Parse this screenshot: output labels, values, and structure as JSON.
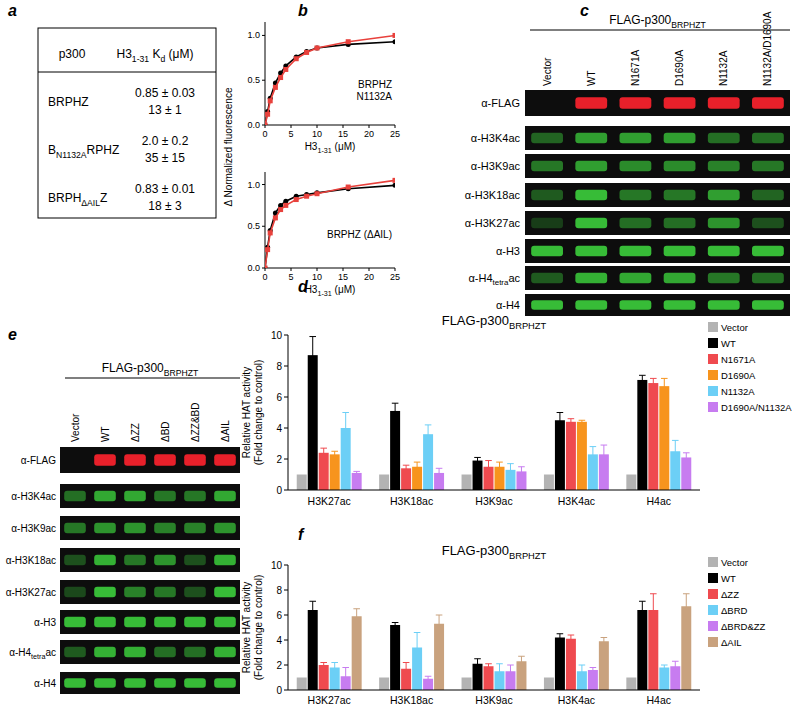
{
  "panel_labels": [
    "a",
    "b",
    "c",
    "d",
    "e",
    "f"
  ],
  "table": {
    "header": [
      [
        {
          "text": "p300"
        }
      ],
      [
        {
          "text": "H3"
        },
        {
          "text": "1-31",
          "sub": true
        },
        {
          "text": " K"
        },
        {
          "text": "d",
          "sub": true
        },
        {
          "text": " (μM)"
        }
      ]
    ],
    "rows": [
      {
        "name": [
          {
            "text": "BRPHZ"
          }
        ],
        "kd": [
          "0.85 ± 0.03",
          "13 ± 1"
        ]
      },
      {
        "name": [
          {
            "text": "B"
          },
          {
            "text": "N1132A",
            "sub": true
          },
          {
            "text": "RPHZ"
          }
        ],
        "kd": [
          "2.0 ± 0.2",
          "35 ± 15"
        ]
      },
      {
        "name": [
          {
            "text": "BRPH"
          },
          {
            "text": "ΔAIL",
            "sub": true
          },
          {
            "text": "Z"
          }
        ],
        "kd": [
          "0.83 ± 0.01",
          "18 ± 3"
        ]
      }
    ]
  },
  "chart_data": [
    {
      "type": "line",
      "ylabel": [
        {
          "text": "Δ Normalized fluorescence"
        }
      ],
      "xlabel": [
        {
          "text": "H3"
        },
        {
          "text": "1-31",
          "sub": true
        },
        {
          "text": " (μM)"
        }
      ],
      "annotation": [
        "BRPHZ",
        "N1132A"
      ],
      "x": [
        0,
        0.5,
        1,
        2,
        3,
        4,
        6,
        8,
        10,
        16,
        25
      ],
      "series": [
        {
          "color": "#000000",
          "marker": "circle",
          "values": [
            0,
            0.15,
            0.3,
            0.47,
            0.58,
            0.66,
            0.76,
            0.82,
            0.86,
            0.9,
            0.93
          ]
        },
        {
          "color": "#e8413c",
          "marker": "square",
          "values": [
            0,
            0.12,
            0.27,
            0.42,
            0.53,
            0.62,
            0.74,
            0.81,
            0.86,
            0.93,
            1.0
          ]
        }
      ],
      "xlim": [
        0,
        25
      ],
      "xticks": [
        0,
        5,
        10,
        15,
        20,
        25
      ],
      "ylim": [
        0,
        1.15
      ],
      "yticks": [
        {
          "value": 0,
          "label": "0.0"
        },
        {
          "value": 0.5,
          "label": "0.5"
        },
        {
          "value": 1,
          "label": "1.0"
        }
      ]
    },
    {
      "type": "line",
      "xlabel": [
        {
          "text": "H3"
        },
        {
          "text": "1-31",
          "sub": true
        },
        {
          "text": " (μM)"
        }
      ],
      "annotation": [
        "BRPHZ (ΔAIL)"
      ],
      "x": [
        0,
        0.5,
        1,
        2,
        3,
        4,
        6,
        8,
        10,
        16,
        25
      ],
      "series": [
        {
          "color": "#000000",
          "marker": "circle",
          "values": [
            0,
            0.25,
            0.45,
            0.66,
            0.75,
            0.8,
            0.86,
            0.88,
            0.9,
            0.95,
            0.99
          ]
        },
        {
          "color": "#e8413c",
          "marker": "square",
          "values": [
            0,
            0.22,
            0.42,
            0.6,
            0.7,
            0.75,
            0.82,
            0.86,
            0.89,
            0.97,
            1.05
          ]
        }
      ],
      "xlim": [
        0,
        25
      ],
      "xticks": [
        0,
        5,
        10,
        15,
        20,
        25
      ],
      "ylim": [
        0,
        1.15
      ],
      "yticks": [
        {
          "value": 0,
          "label": "0.0"
        },
        {
          "value": 0.5,
          "label": "0.5"
        },
        {
          "value": 1,
          "label": "1.0"
        }
      ]
    },
    {
      "type": "bar",
      "title": [
        {
          "text": "FLAG-p300"
        },
        {
          "text": "BRPHZT",
          "sub": true
        }
      ],
      "ylabel": [
        "Relative HAT activity",
        "(Fold change to control)"
      ],
      "legend": "right",
      "categories": [
        "H3K27ac",
        "H3K18ac",
        "H3K9ac",
        "H3K4ac",
        "H4ac"
      ],
      "series": [
        {
          "name": "Vector",
          "color": "#b3b3b3",
          "values": [
            1,
            1,
            1,
            1,
            1
          ],
          "errors": [
            null,
            null,
            null,
            null,
            null
          ]
        },
        {
          "name": "WT",
          "color": "#000000",
          "values": [
            8.7,
            5.1,
            1.9,
            4.5,
            7.1
          ],
          "errors": [
            1.2,
            0.5,
            0.2,
            0.5,
            0.3
          ]
        },
        {
          "name": "N1671A",
          "color": "#ef4a4f",
          "values": [
            2.4,
            1.4,
            1.5,
            4.4,
            6.9
          ],
          "errors": [
            0.3,
            0.2,
            0.4,
            0.2,
            0.3
          ]
        },
        {
          "name": "D1690A",
          "color": "#f7941d",
          "values": [
            2.3,
            1.5,
            1.5,
            4.4,
            6.7
          ],
          "errors": [
            0.2,
            0.3,
            0.3,
            0.1,
            0.5
          ]
        },
        {
          "name": "N1132A",
          "color": "#6ccff6",
          "values": [
            4.0,
            3.6,
            1.3,
            2.3,
            2.5
          ],
          "errors": [
            1.0,
            0.6,
            0.4,
            0.5,
            0.7
          ]
        },
        {
          "name": "D1690A/N1132A",
          "color": "#c77cf0",
          "values": [
            1.1,
            1.1,
            1.2,
            2.3,
            2.1
          ],
          "errors": [
            0.1,
            0.3,
            0.3,
            0.6,
            0.3
          ]
        }
      ],
      "ylim": [
        0,
        10
      ],
      "yticks": [
        0,
        2,
        4,
        6,
        8,
        10
      ]
    },
    {
      "type": "bar",
      "title": [
        {
          "text": "FLAG-p300"
        },
        {
          "text": "BRPHZT",
          "sub": true
        }
      ],
      "ylabel": [
        "Relative HAT activity",
        "(Fold change to control)"
      ],
      "legend": "right",
      "categories": [
        "H3K27ac",
        "H3K18ac",
        "H3K9ac",
        "H3K4ac",
        "H4ac"
      ],
      "series": [
        {
          "name": "Vector",
          "color": "#b3b3b3",
          "values": [
            1,
            1,
            1,
            1,
            1
          ],
          "errors": [
            null,
            null,
            null,
            null,
            null
          ]
        },
        {
          "name": "WT",
          "color": "#000000",
          "values": [
            6.4,
            5.2,
            2.1,
            4.2,
            6.4
          ],
          "errors": [
            0.7,
            0.2,
            0.4,
            0.3,
            0.7
          ]
        },
        {
          "name": "ΔZZ",
          "color": "#ef4a4f",
          "values": [
            2.0,
            1.7,
            1.9,
            4.1,
            6.4
          ],
          "errors": [
            0.2,
            0.5,
            0.2,
            0.3,
            1.3
          ]
        },
        {
          "name": "ΔBRD",
          "color": "#6ccff6",
          "values": [
            1.8,
            3.4,
            1.5,
            1.5,
            1.8
          ],
          "errors": [
            0.4,
            1.2,
            0.6,
            0.5,
            0.2
          ]
        },
        {
          "name": "ΔBRD&ZZ",
          "color": "#c77cf0",
          "values": [
            1.1,
            0.9,
            1.5,
            1.6,
            1.9
          ],
          "errors": [
            0.7,
            0.2,
            0.5,
            0.2,
            0.4
          ]
        },
        {
          "name": "ΔAIL",
          "color": "#c9a27e",
          "values": [
            5.9,
            5.3,
            2.3,
            3.9,
            6.7
          ],
          "errors": [
            0.6,
            0.7,
            0.4,
            0.3,
            1.0
          ]
        }
      ],
      "ylim": [
        0,
        10
      ],
      "yticks": [
        0,
        2,
        4,
        6,
        8,
        10
      ]
    }
  ],
  "blots": [
    {
      "header": [
        {
          "text": "FLAG-p300"
        },
        {
          "text": "BRPHZT",
          "sub": true
        }
      ],
      "lanes": [
        "Vector",
        "WT",
        "N1671A",
        "D1690A",
        "N1132A",
        "N1132A/D1690A"
      ],
      "rows": [
        {
          "label": [
            {
              "text": "α-FLAG"
            }
          ],
          "color": "#e8202a",
          "band_intensity": [
            0,
            1,
            1,
            1,
            1,
            1
          ]
        },
        {
          "label": [
            {
              "text": "α-H3K4ac"
            }
          ],
          "color": "#3ccf3c",
          "band_intensity": [
            0.45,
            0.75,
            0.75,
            0.75,
            0.5,
            0.5
          ]
        },
        {
          "label": [
            {
              "text": "α-H3K9ac"
            }
          ],
          "color": "#3ccf3c",
          "band_intensity": [
            0.55,
            0.75,
            0.65,
            0.65,
            0.6,
            0.55
          ]
        },
        {
          "label": [
            {
              "text": "α-H3K18ac"
            }
          ],
          "color": "#3ccf3c",
          "band_intensity": [
            0.4,
            0.9,
            0.55,
            0.55,
            0.75,
            0.45
          ]
        },
        {
          "label": [
            {
              "text": "α-H3K27ac"
            }
          ],
          "color": "#3ccf3c",
          "band_intensity": [
            0.25,
            0.9,
            0.5,
            0.5,
            0.7,
            0.35
          ]
        },
        {
          "label": [
            {
              "text": "α-H3"
            }
          ],
          "color": "#3ccf3c",
          "band_intensity": [
            0.9,
            0.9,
            0.9,
            0.9,
            0.9,
            0.9
          ]
        },
        {
          "label": [
            {
              "text": "α-H4"
            },
            {
              "text": "tetra",
              "sub": true
            },
            {
              "text": "ac"
            }
          ],
          "color": "#3ccf3c",
          "band_intensity": [
            0.4,
            0.85,
            0.8,
            0.8,
            0.55,
            0.5
          ]
        },
        {
          "label": [
            {
              "text": "α-H4"
            }
          ],
          "color": "#3ccf3c",
          "band_intensity": [
            0.9,
            0.9,
            0.9,
            0.9,
            0.9,
            0.9
          ]
        }
      ]
    },
    {
      "header": [
        {
          "text": "FLAG-p300"
        },
        {
          "text": "BRPHZT",
          "sub": true
        }
      ],
      "lanes": [
        "Vector",
        "WT",
        "ΔZZ",
        "ΔBD",
        "ΔZZ&BD",
        "ΔAIL"
      ],
      "rows": [
        {
          "label": [
            {
              "text": "α-FLAG"
            }
          ],
          "color": "#e8202a",
          "band_intensity": [
            0,
            1,
            1,
            1,
            1,
            1
          ]
        },
        {
          "label": [
            {
              "text": "α-H3K4ac"
            }
          ],
          "color": "#3ccf3c",
          "band_intensity": [
            0.5,
            0.8,
            0.8,
            0.55,
            0.55,
            0.8
          ]
        },
        {
          "label": [
            {
              "text": "α-H3K9ac"
            }
          ],
          "color": "#3ccf3c",
          "band_intensity": [
            0.55,
            0.7,
            0.7,
            0.6,
            0.6,
            0.7
          ]
        },
        {
          "label": [
            {
              "text": "α-H3K18ac"
            }
          ],
          "color": "#3ccf3c",
          "band_intensity": [
            0.35,
            0.85,
            0.55,
            0.7,
            0.35,
            0.85
          ]
        },
        {
          "label": [
            {
              "text": "α-H3K27ac"
            }
          ],
          "color": "#3ccf3c",
          "band_intensity": [
            0.3,
            0.9,
            0.6,
            0.55,
            0.35,
            0.9
          ]
        },
        {
          "label": [
            {
              "text": "α-H3"
            }
          ],
          "color": "#3ccf3c",
          "band_intensity": [
            0.9,
            0.9,
            0.9,
            0.9,
            0.9,
            0.9
          ]
        },
        {
          "label": [
            {
              "text": "α-H4"
            },
            {
              "text": "tetra",
              "sub": true
            },
            {
              "text": "ac"
            }
          ],
          "color": "#3ccf3c",
          "band_intensity": [
            0.4,
            0.85,
            0.85,
            0.5,
            0.5,
            0.85
          ]
        },
        {
          "label": [
            {
              "text": "α-H4"
            }
          ],
          "color": "#3ccf3c",
          "band_intensity": [
            0.9,
            0.9,
            0.9,
            0.9,
            0.9,
            0.9
          ]
        }
      ]
    }
  ]
}
